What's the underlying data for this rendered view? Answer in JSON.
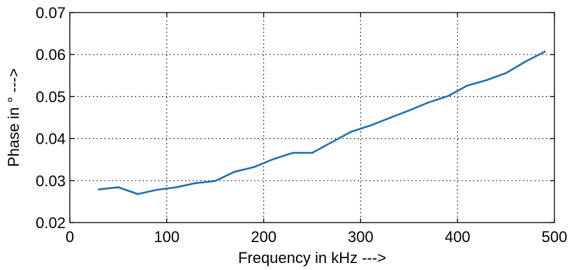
{
  "chart_data": {
    "type": "line",
    "title": "",
    "xlabel": "Frequency in kHz --->",
    "ylabel": "Phase in ° --->",
    "xlim": [
      0,
      500
    ],
    "ylim": [
      0.02,
      0.07
    ],
    "x_ticks": [
      0,
      100,
      200,
      300,
      400,
      500
    ],
    "x_tick_labels": [
      "0",
      "100",
      "200",
      "300",
      "400",
      "500"
    ],
    "y_ticks": [
      0.02,
      0.03,
      0.04,
      0.05,
      0.06,
      0.07
    ],
    "y_tick_labels": [
      "0.02",
      "0.03",
      "0.04",
      "0.05",
      "0.06",
      "0.07"
    ],
    "grid": true,
    "legend": "none",
    "series": [
      {
        "color": "#1f6fb0",
        "x": [
          30,
          50,
          70,
          90,
          110,
          130,
          150,
          170,
          190,
          210,
          230,
          250,
          270,
          290,
          310,
          330,
          350,
          370,
          390,
          410,
          430,
          450,
          470,
          490
        ],
        "y": [
          0.0279,
          0.0284,
          0.0268,
          0.0278,
          0.0284,
          0.0294,
          0.0299,
          0.0321,
          0.0332,
          0.0351,
          0.0366,
          0.0366,
          0.0391,
          0.0416,
          0.0431,
          0.0449,
          0.0467,
          0.0486,
          0.0501,
          0.0526,
          0.0539,
          0.0556,
          0.0583,
          0.0607
        ]
      }
    ]
  }
}
